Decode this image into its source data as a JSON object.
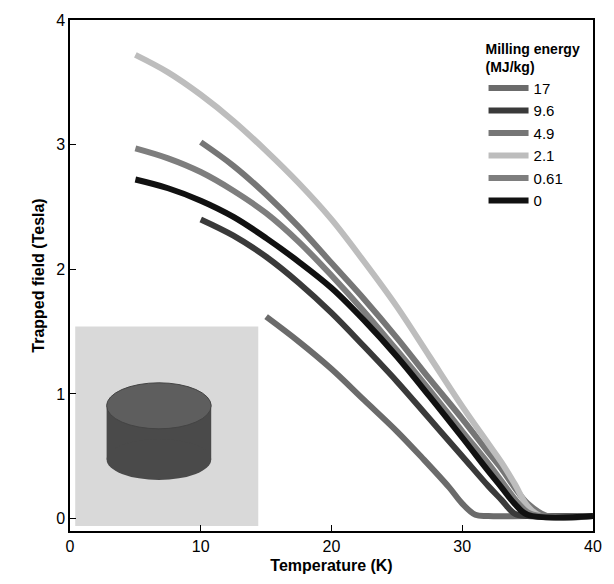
{
  "chart_data": {
    "type": "line",
    "x_label": "Temperature (K)",
    "y_label": "Trapped field (Tesla)",
    "legend_title": "Milling energy\n(MJ/kg)",
    "legend": "upper right",
    "grid": false,
    "xlim": [
      0,
      40
    ],
    "xticks": [
      0,
      10,
      20,
      30,
      40
    ],
    "ylim": [
      -0.1,
      4
    ],
    "yticks": [
      0,
      1,
      2,
      3,
      4
    ],
    "series": [
      {
        "name": "17",
        "color": "#6b6b6b",
        "line_style": "solid",
        "x": [
          15,
          17.5,
          20,
          22.5,
          25,
          27,
          29,
          30,
          31,
          32,
          35,
          40
        ],
        "values": [
          1.62,
          1.42,
          1.2,
          0.95,
          0.7,
          0.48,
          0.25,
          0.12,
          0.03,
          0.02,
          0.02,
          0.02
        ]
      },
      {
        "name": "9.6",
        "color": "#3a3a3a",
        "line_style": "solid",
        "x": [
          10,
          12.5,
          15,
          17.5,
          20,
          22.5,
          25,
          27.5,
          30,
          32,
          33,
          34,
          35,
          40
        ],
        "values": [
          2.4,
          2.27,
          2.1,
          1.89,
          1.65,
          1.38,
          1.1,
          0.8,
          0.5,
          0.26,
          0.15,
          0.04,
          0.02,
          0.02
        ]
      },
      {
        "name": "4.9",
        "color": "#767676",
        "line_style": "solid",
        "x": [
          10,
          12.5,
          15,
          17.5,
          20,
          22.5,
          25,
          27.5,
          30,
          32,
          33,
          34,
          35,
          36.5,
          40
        ],
        "values": [
          3.02,
          2.83,
          2.6,
          2.34,
          2.05,
          1.76,
          1.45,
          1.12,
          0.8,
          0.53,
          0.4,
          0.25,
          0.12,
          0.02,
          0.02
        ]
      },
      {
        "name": "2.1",
        "color": "#bdbdbd",
        "line_style": "solid",
        "x": [
          5,
          7.5,
          10,
          12.5,
          15,
          17.5,
          20,
          22.5,
          25,
          27.5,
          30,
          32,
          33,
          34,
          35,
          36,
          40
        ],
        "values": [
          3.72,
          3.58,
          3.4,
          3.19,
          2.95,
          2.69,
          2.4,
          2.06,
          1.7,
          1.3,
          0.9,
          0.6,
          0.45,
          0.28,
          0.1,
          0.02,
          0.02
        ]
      },
      {
        "name": "0.61",
        "color": "#7e7e7e",
        "line_style": "solid",
        "x": [
          5,
          7.5,
          10,
          12.5,
          15,
          17.5,
          20,
          22.5,
          25,
          27.5,
          30,
          32,
          33,
          34,
          35,
          36,
          40
        ],
        "values": [
          2.97,
          2.89,
          2.78,
          2.63,
          2.45,
          2.22,
          1.95,
          1.66,
          1.35,
          1.03,
          0.7,
          0.44,
          0.3,
          0.16,
          0.05,
          0.02,
          0.02
        ]
      },
      {
        "name": "0",
        "color": "#111111",
        "line_style": "solid",
        "x": [
          5,
          7.5,
          10,
          12.5,
          15,
          17.5,
          20,
          22.5,
          25,
          27.5,
          30,
          32,
          33,
          34,
          35,
          40
        ],
        "values": [
          2.72,
          2.65,
          2.55,
          2.42,
          2.25,
          2.06,
          1.85,
          1.59,
          1.3,
          0.98,
          0.65,
          0.38,
          0.25,
          0.12,
          0.03,
          0.02
        ]
      }
    ]
  }
}
